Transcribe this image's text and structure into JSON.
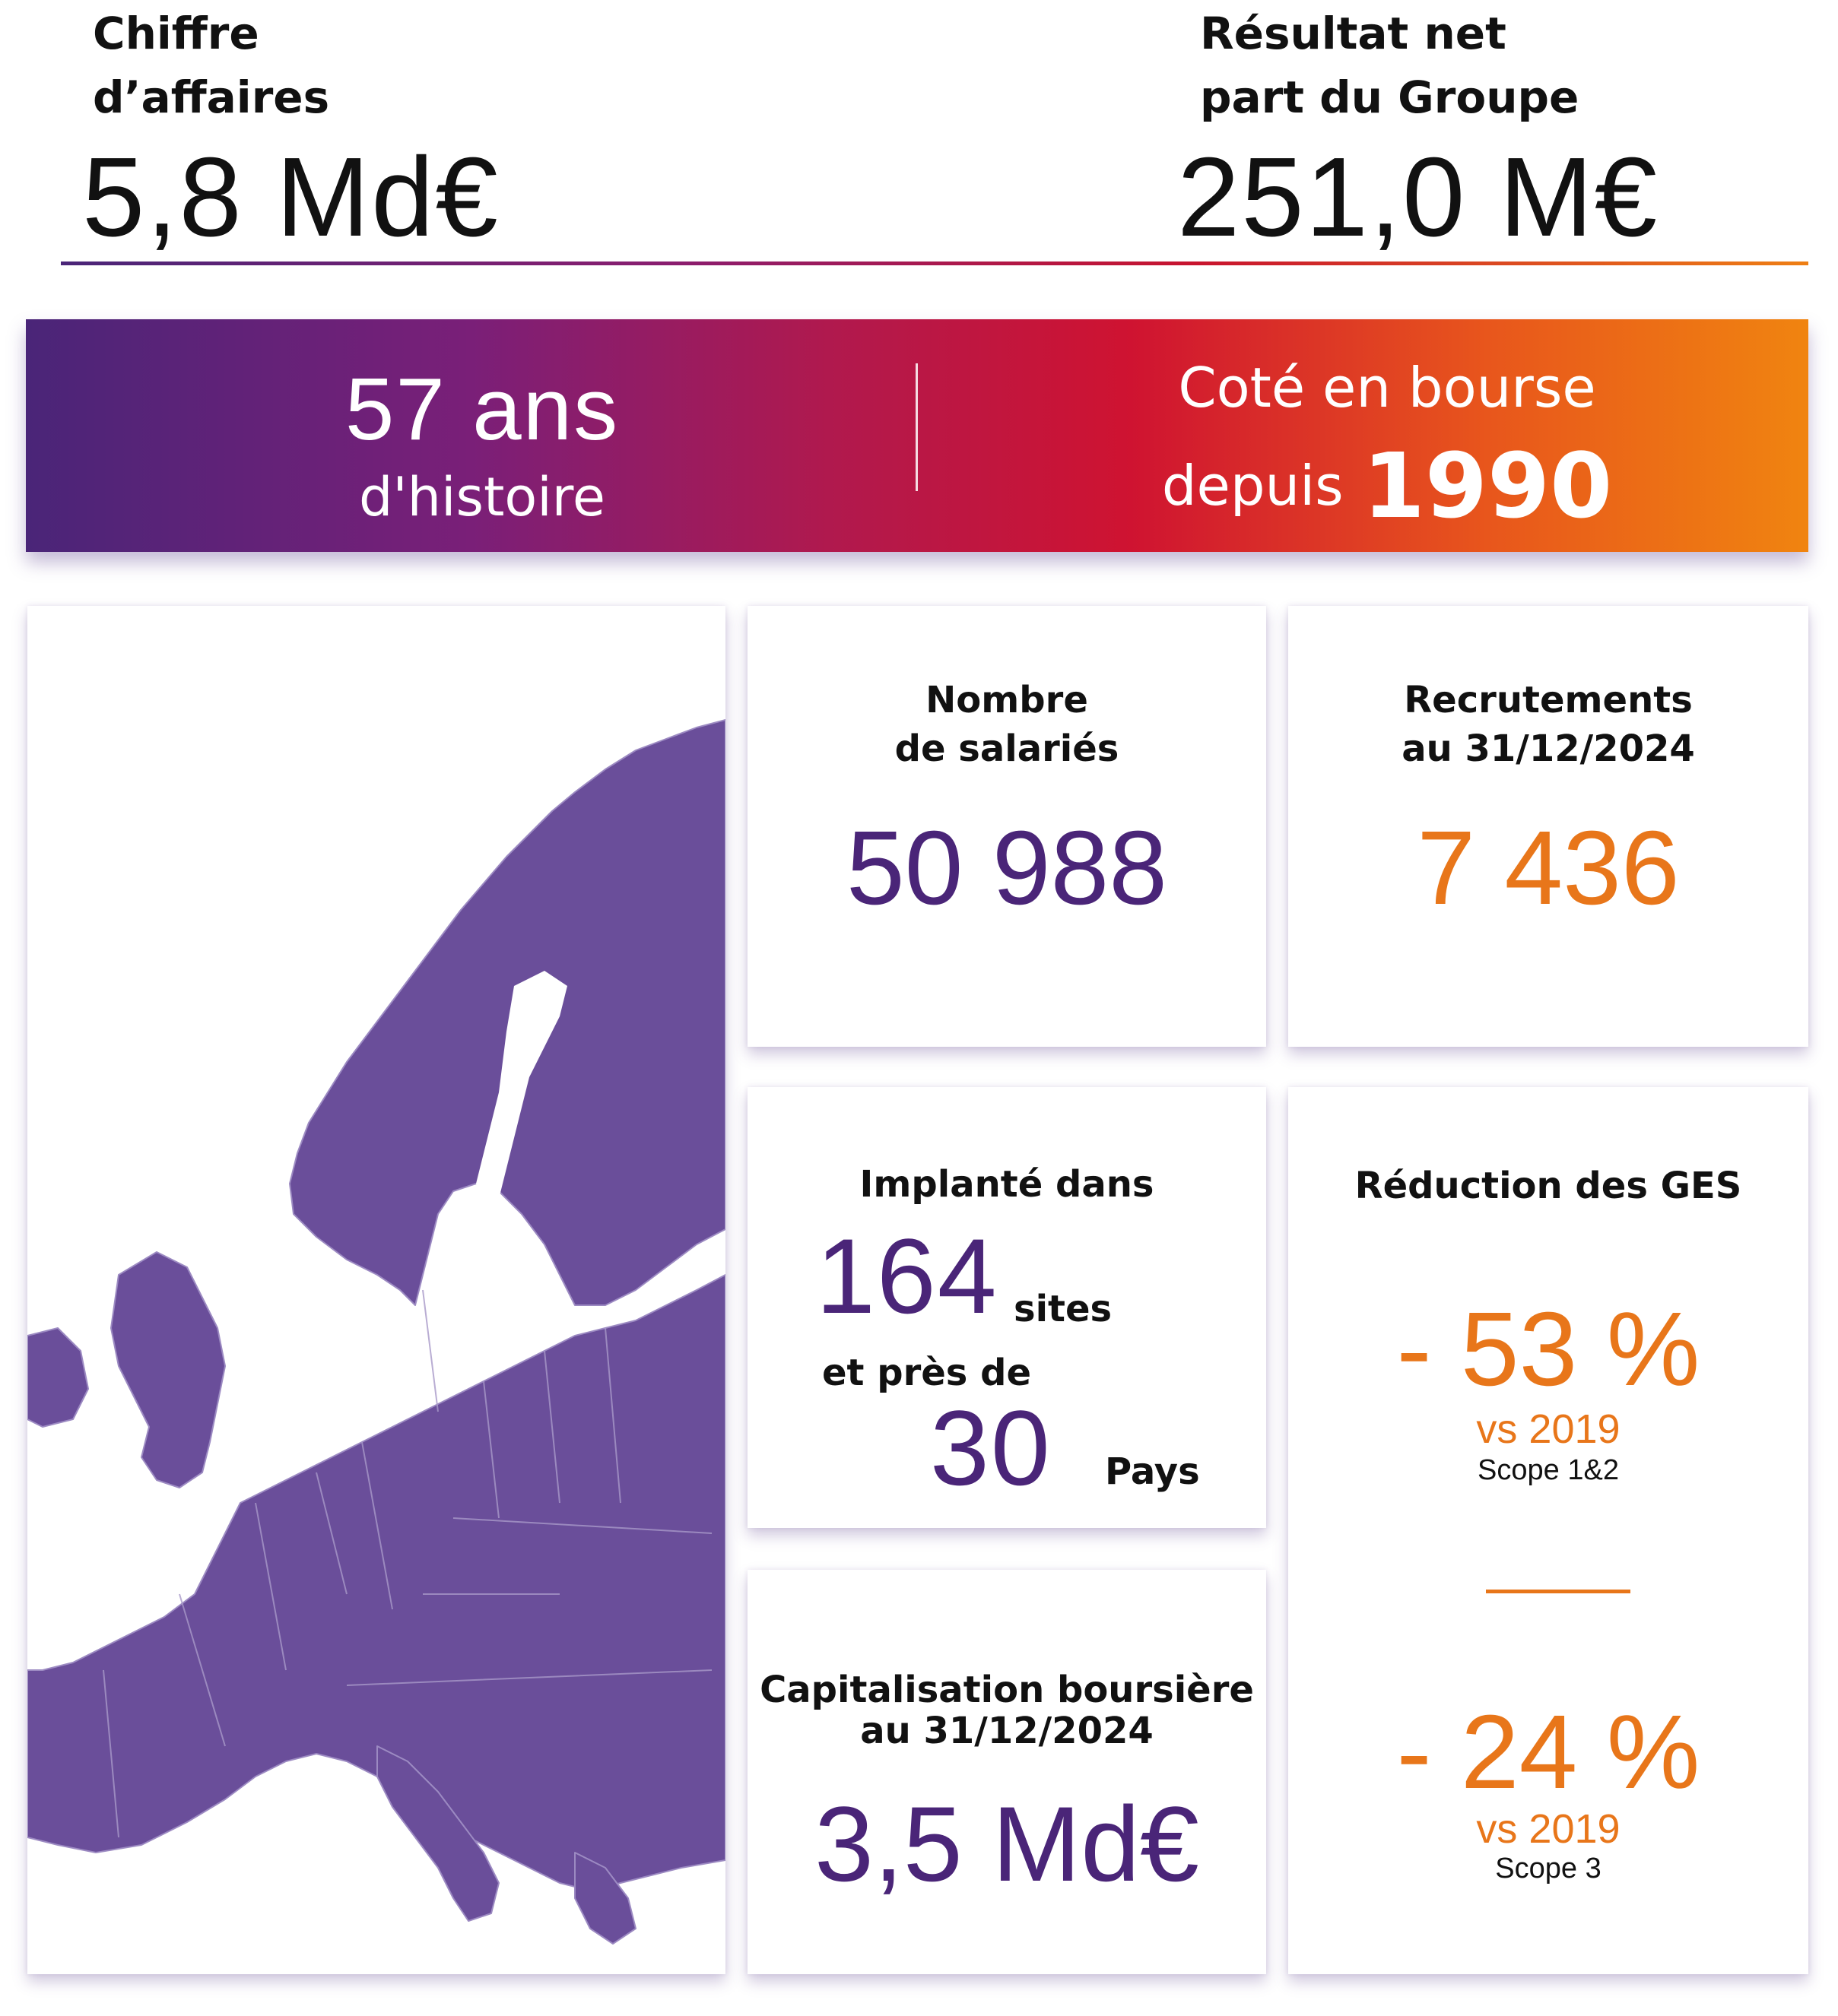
{
  "kpis": {
    "revenue": {
      "label_line1": "Chiffre",
      "label_line2": "d’affaires",
      "value": "5,8 Md€"
    },
    "net_income": {
      "label_line1": "Résultat net",
      "label_line2": "part du Groupe",
      "value": "251,0 M€"
    }
  },
  "banner": {
    "years_value": "57 ans",
    "years_label": "d'histoire",
    "listed_line1": "Coté en bourse",
    "listed_prefix": "depuis",
    "listed_year": "1990"
  },
  "cards": {
    "employees": {
      "title_line1": "Nombre",
      "title_line2": "de salariés",
      "value": "50 988"
    },
    "recruitments": {
      "title_line1": "Recrutements",
      "title_line2": "au 31/12/2024",
      "value": "7 436"
    },
    "presence": {
      "title": "Implanté dans",
      "sites_value": "164",
      "sites_label": "sites",
      "middle_text": "et près de",
      "countries_value": "30",
      "countries_label": "Pays"
    },
    "ghg": {
      "title": "Réduction des GES",
      "scope12_value": "- 53 %",
      "scope12_vs": "vs 2019",
      "scope12_label": "Scope 1&2",
      "scope3_value": "- 24 %",
      "scope3_vs": "vs 2019",
      "scope3_label": "Scope 3"
    },
    "market_cap": {
      "title_line1": "Capitalisation boursière",
      "title_line2": "au 31/12/2024",
      "value": "3,5 Md€"
    }
  },
  "colors": {
    "purple": "#4a2578",
    "orange": "#e8761a",
    "map_fill": "#6a4e9a",
    "gradient": [
      "#4a2578",
      "#7a1f78",
      "#cf1331",
      "#f08410"
    ]
  }
}
